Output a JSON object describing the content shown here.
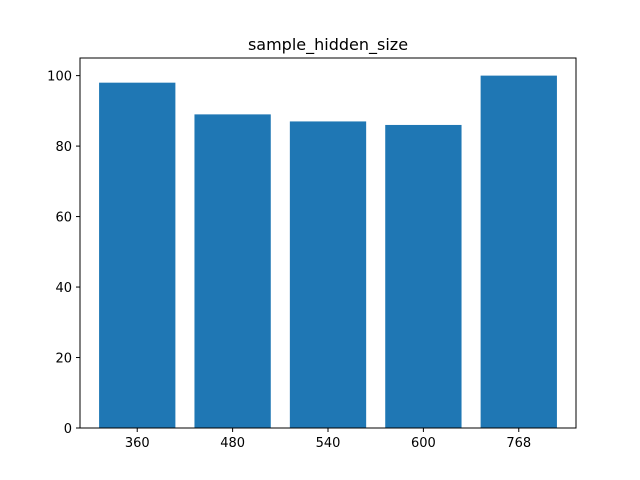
{
  "chart_data": {
    "type": "bar",
    "title": "sample_hidden_size",
    "categories": [
      "360",
      "480",
      "540",
      "600",
      "768"
    ],
    "values": [
      98,
      89,
      87,
      86,
      100
    ],
    "xlabel": "",
    "ylabel": "",
    "ylim": [
      0,
      105
    ],
    "yticks": [
      0,
      20,
      40,
      60,
      80,
      100
    ],
    "grid": false,
    "bar_color": "#1f77b4"
  }
}
